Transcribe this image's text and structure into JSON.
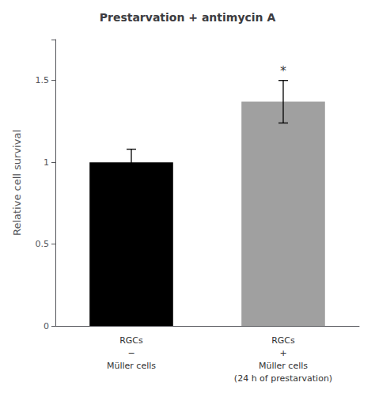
{
  "chart_data": {
    "type": "bar",
    "title": "Prestarvation + antimycin A",
    "ylabel": "Relative cell survival",
    "categories": [
      "RGCs\n−\nMüller cells",
      "RGCs\n+\nMüller cells\n(24 h of prestarvation)"
    ],
    "values": [
      1.0,
      1.37
    ],
    "errors": [
      0.08,
      0.13
    ],
    "colors": [
      "#000000",
      "#a0a0a0"
    ],
    "ylim": [
      0,
      1.75
    ],
    "yticks": [
      0,
      0.5,
      1,
      1.5
    ],
    "grid": false,
    "annotations": [
      {
        "text": "*",
        "category": "RGCs\n+\nMüller cells\n(24 h of prestarvation)",
        "y": 1.52
      }
    ]
  }
}
